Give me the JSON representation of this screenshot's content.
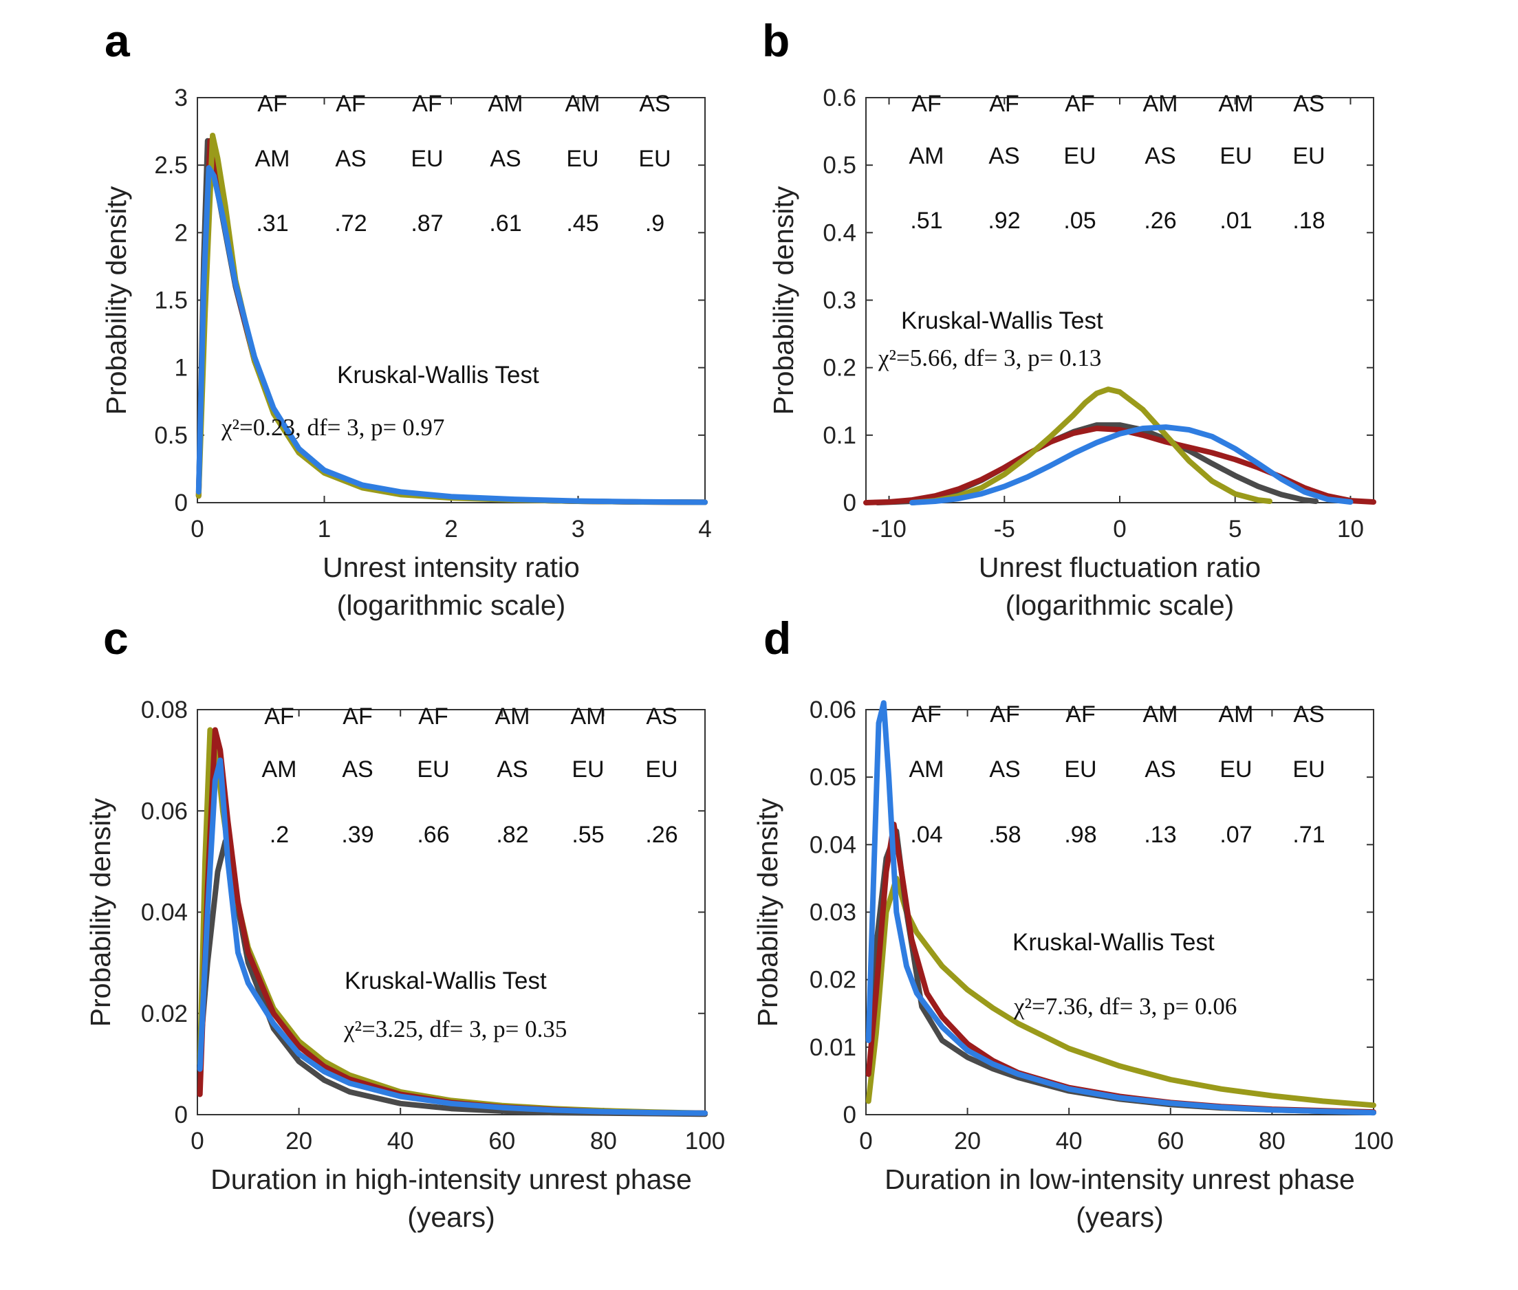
{
  "figure": {
    "colors": {
      "AF": "#4a4a4a",
      "AM": "#9c1c1c",
      "AS": "#2f7de1",
      "EU": "#9a9a1a"
    },
    "series_names": [
      "AF",
      "AM",
      "AS",
      "EU"
    ]
  },
  "chart_data": [
    {
      "panel": "a",
      "type": "line",
      "xlabel": [
        "Unrest intensity ratio",
        "(logarithmic scale)"
      ],
      "ylabel": "Probability density",
      "xlim": [
        0,
        4
      ],
      "ylim": [
        0,
        3
      ],
      "xticks": [
        0,
        1,
        2,
        3,
        4
      ],
      "xtick_labels": [
        "0",
        "1",
        "2",
        "3",
        "4"
      ],
      "yticks": [
        0,
        0.5,
        1,
        1.5,
        2,
        2.5,
        3
      ],
      "ytick_labels": [
        "0",
        "0.5",
        "1",
        "1.5",
        "2",
        "2.5",
        "3"
      ],
      "pairs": [
        {
          "top": "AF",
          "bottom": "AM",
          "p": ".31"
        },
        {
          "top": "AF",
          "bottom": "AS",
          "p": ".72"
        },
        {
          "top": "AF",
          "bottom": "EU",
          "p": ".87"
        },
        {
          "top": "AM",
          "bottom": "AS",
          "p": ".61"
        },
        {
          "top": "AM",
          "bottom": "EU",
          "p": ".45"
        },
        {
          "top": "AS",
          "bottom": "EU",
          "p": ".9"
        }
      ],
      "test_title": "Kruskal-Wallis Test",
      "test_stat": "χ²=0.23, df= 3, p= 0.97",
      "series": [
        {
          "name": "AF",
          "x": [
            0.01,
            0.05,
            0.08,
            0.12,
            0.2,
            0.3,
            0.45,
            0.6,
            0.8,
            1.0,
            1.3,
            1.6,
            2.0,
            2.5,
            3.0,
            3.5,
            4.0
          ],
          "y": [
            0.05,
            1.8,
            2.68,
            2.5,
            2.1,
            1.6,
            1.05,
            0.68,
            0.38,
            0.23,
            0.12,
            0.07,
            0.04,
            0.02,
            0.01,
            0.005,
            0.003
          ]
        },
        {
          "name": "AM",
          "x": [
            0.01,
            0.05,
            0.1,
            0.14,
            0.2,
            0.3,
            0.45,
            0.6,
            0.8,
            1.0,
            1.3,
            1.6,
            2.0,
            2.5,
            3.0,
            3.5,
            4.0
          ],
          "y": [
            0.05,
            1.5,
            2.68,
            2.5,
            2.15,
            1.62,
            1.05,
            0.68,
            0.38,
            0.23,
            0.12,
            0.07,
            0.04,
            0.02,
            0.01,
            0.005,
            0.003
          ]
        },
        {
          "name": "EU",
          "x": [
            0.01,
            0.06,
            0.12,
            0.16,
            0.22,
            0.3,
            0.45,
            0.6,
            0.8,
            1.0,
            1.3,
            1.6,
            2.0,
            2.5,
            3.0,
            3.5,
            4.0
          ],
          "y": [
            0.05,
            1.4,
            2.72,
            2.55,
            2.2,
            1.65,
            1.05,
            0.66,
            0.37,
            0.22,
            0.11,
            0.06,
            0.035,
            0.02,
            0.01,
            0.005,
            0.003
          ]
        },
        {
          "name": "AS",
          "x": [
            0.01,
            0.05,
            0.09,
            0.13,
            0.2,
            0.3,
            0.45,
            0.6,
            0.8,
            1.0,
            1.3,
            1.6,
            2.0,
            2.5,
            3.0,
            3.5,
            4.0
          ],
          "y": [
            0.08,
            1.6,
            2.48,
            2.42,
            2.12,
            1.62,
            1.08,
            0.7,
            0.4,
            0.24,
            0.13,
            0.08,
            0.045,
            0.025,
            0.012,
            0.006,
            0.003
          ]
        }
      ]
    },
    {
      "panel": "b",
      "type": "line",
      "xlabel": [
        "Unrest fluctuation ratio",
        "(logarithmic scale)"
      ],
      "ylabel": "Probability density",
      "xlim": [
        -11,
        11
      ],
      "ylim": [
        0,
        0.6
      ],
      "xticks": [
        -10,
        -5,
        0,
        5,
        10
      ],
      "xtick_labels": [
        "-10",
        "-5",
        "0",
        "5",
        "10"
      ],
      "yticks": [
        0,
        0.1,
        0.2,
        0.3,
        0.4,
        0.5,
        0.6
      ],
      "ytick_labels": [
        "0",
        "0.1",
        "0.2",
        "0.3",
        "0.4",
        "0.5",
        "0.6"
      ],
      "pairs": [
        {
          "top": "AF",
          "bottom": "AM",
          "p": ".51"
        },
        {
          "top": "AF",
          "bottom": "AS",
          "p": ".92"
        },
        {
          "top": "AF",
          "bottom": "EU",
          "p": ".05"
        },
        {
          "top": "AM",
          "bottom": "AS",
          "p": ".26"
        },
        {
          "top": "AM",
          "bottom": "EU",
          "p": ".01"
        },
        {
          "top": "AS",
          "bottom": "EU",
          "p": ".18"
        }
      ],
      "test_title": "Kruskal-Wallis Test",
      "test_stat": "χ²=5.66, df= 3, p= 0.13",
      "series": [
        {
          "name": "AF",
          "x": [
            -10.5,
            -9,
            -8,
            -7,
            -6,
            -5,
            -4,
            -3,
            -2,
            -1,
            0,
            1,
            2,
            3,
            4,
            5,
            6,
            7,
            8,
            8.5
          ],
          "y": [
            0,
            0.002,
            0.008,
            0.018,
            0.033,
            0.052,
            0.072,
            0.09,
            0.105,
            0.115,
            0.115,
            0.108,
            0.094,
            0.077,
            0.058,
            0.04,
            0.024,
            0.012,
            0.004,
            0.002
          ]
        },
        {
          "name": "AM",
          "x": [
            -11,
            -10,
            -9,
            -8,
            -7,
            -6,
            -5,
            -4,
            -3,
            -2,
            -1,
            0,
            1,
            2,
            3,
            4,
            5,
            6,
            7,
            8,
            9,
            10,
            11
          ],
          "y": [
            0,
            0.001,
            0.004,
            0.01,
            0.02,
            0.034,
            0.052,
            0.072,
            0.09,
            0.103,
            0.11,
            0.108,
            0.1,
            0.09,
            0.082,
            0.074,
            0.064,
            0.052,
            0.038,
            0.022,
            0.01,
            0.003,
            0.001
          ]
        },
        {
          "name": "EU",
          "x": [
            -9,
            -8,
            -7,
            -6,
            -5,
            -4,
            -3,
            -2,
            -1.5,
            -1,
            -0.5,
            0,
            1,
            2,
            3,
            4,
            5,
            6,
            6.5
          ],
          "y": [
            0,
            0.003,
            0.01,
            0.022,
            0.042,
            0.068,
            0.098,
            0.13,
            0.148,
            0.162,
            0.168,
            0.164,
            0.138,
            0.1,
            0.062,
            0.032,
            0.013,
            0.004,
            0.002
          ]
        },
        {
          "name": "AS",
          "x": [
            -9,
            -8,
            -7,
            -6,
            -5,
            -4,
            -3,
            -2,
            -1,
            0,
            1,
            2,
            3,
            4,
            5,
            6,
            7,
            8,
            9,
            10
          ],
          "y": [
            0,
            0.002,
            0.006,
            0.013,
            0.024,
            0.038,
            0.055,
            0.073,
            0.089,
            0.102,
            0.11,
            0.112,
            0.108,
            0.098,
            0.08,
            0.058,
            0.035,
            0.016,
            0.005,
            0.001
          ]
        }
      ]
    },
    {
      "panel": "c",
      "type": "line",
      "xlabel": [
        "Duration in high-intensity unrest phase",
        "(years)"
      ],
      "ylabel": "Probability density",
      "xlim": [
        0,
        100
      ],
      "ylim": [
        0,
        0.08
      ],
      "xticks": [
        0,
        20,
        40,
        60,
        80,
        100
      ],
      "xtick_labels": [
        "0",
        "20",
        "40",
        "60",
        "80",
        "100"
      ],
      "yticks": [
        0,
        0.02,
        0.04,
        0.06,
        0.08
      ],
      "ytick_labels": [
        "0",
        "0.02",
        "0.04",
        "0.06",
        "0.08"
      ],
      "pairs": [
        {
          "top": "AF",
          "bottom": "AM",
          "p": ".2"
        },
        {
          "top": "AF",
          "bottom": "AS",
          "p": ".39"
        },
        {
          "top": "AF",
          "bottom": "EU",
          "p": ".66"
        },
        {
          "top": "AM",
          "bottom": "AS",
          "p": ".82"
        },
        {
          "top": "AM",
          "bottom": "EU",
          "p": ".55"
        },
        {
          "top": "AS",
          "bottom": "EU",
          "p": ".26"
        }
      ],
      "test_title": "Kruskal-Wallis Test",
      "test_stat": "χ²=3.25, df= 3, p= 0.35",
      "series": [
        {
          "name": "AF",
          "x": [
            0.5,
            2,
            4,
            5.5,
            7,
            10,
            15,
            20,
            25,
            30,
            40,
            50,
            60,
            70,
            80,
            90,
            100
          ],
          "y": [
            0.012,
            0.03,
            0.048,
            0.054,
            0.046,
            0.03,
            0.017,
            0.0105,
            0.0068,
            0.0045,
            0.0022,
            0.0012,
            0.0007,
            0.0004,
            0.0003,
            0.0002,
            0.0001
          ]
        },
        {
          "name": "EU",
          "x": [
            0.5,
            1.5,
            2.5,
            3.5,
            5,
            7,
            10,
            15,
            20,
            25,
            30,
            40,
            50,
            60,
            70,
            80,
            90,
            100
          ],
          "y": [
            0.01,
            0.05,
            0.076,
            0.074,
            0.06,
            0.046,
            0.033,
            0.021,
            0.0145,
            0.0105,
            0.0078,
            0.0045,
            0.0028,
            0.0018,
            0.0012,
            0.0008,
            0.0005,
            0.0003
          ]
        },
        {
          "name": "AM",
          "x": [
            0.5,
            2,
            3.5,
            4.5,
            6,
            8,
            10,
            15,
            20,
            25,
            30,
            40,
            50,
            60,
            70,
            80,
            90,
            100
          ],
          "y": [
            0.004,
            0.045,
            0.076,
            0.072,
            0.058,
            0.042,
            0.032,
            0.02,
            0.0135,
            0.0095,
            0.007,
            0.004,
            0.0024,
            0.0015,
            0.001,
            0.0006,
            0.0004,
            0.0003
          ]
        },
        {
          "name": "AS",
          "x": [
            0.5,
            2,
            3.5,
            4.5,
            6,
            8,
            10,
            15,
            20,
            25,
            30,
            40,
            50,
            60,
            70,
            80,
            90,
            100
          ],
          "y": [
            0.009,
            0.04,
            0.066,
            0.07,
            0.05,
            0.032,
            0.026,
            0.018,
            0.012,
            0.0085,
            0.0062,
            0.0036,
            0.0022,
            0.0014,
            0.0009,
            0.0006,
            0.0004,
            0.0003
          ]
        }
      ]
    },
    {
      "panel": "d",
      "type": "line",
      "xlabel": [
        "Duration in low-intensity unrest phase",
        "(years)"
      ],
      "ylabel": "Probability density",
      "xlim": [
        0,
        100
      ],
      "ylim": [
        0,
        0.06
      ],
      "xticks": [
        0,
        20,
        40,
        60,
        80,
        100
      ],
      "xtick_labels": [
        "0",
        "20",
        "40",
        "60",
        "80",
        "100"
      ],
      "yticks": [
        0,
        0.01,
        0.02,
        0.03,
        0.04,
        0.05,
        0.06
      ],
      "ytick_labels": [
        "0",
        "0.01",
        "0.02",
        "0.03",
        "0.04",
        "0.05",
        "0.06"
      ],
      "pairs": [
        {
          "top": "AF",
          "bottom": "AM",
          "p": ".04"
        },
        {
          "top": "AF",
          "bottom": "AS",
          "p": ".58"
        },
        {
          "top": "AF",
          "bottom": "EU",
          "p": ".98"
        },
        {
          "top": "AM",
          "bottom": "AS",
          "p": ".13"
        },
        {
          "top": "AM",
          "bottom": "EU",
          "p": ".07"
        },
        {
          "top": "AS",
          "bottom": "EU",
          "p": ".71"
        }
      ],
      "test_title": "Kruskal-Wallis Test",
      "test_stat": "χ²=7.36, df= 3, p= 0.06",
      "series": [
        {
          "name": "EU",
          "x": [
            0.5,
            2,
            4,
            6,
            8,
            10,
            15,
            20,
            25,
            30,
            40,
            50,
            60,
            70,
            80,
            90,
            100
          ],
          "y": [
            0.002,
            0.012,
            0.03,
            0.035,
            0.03,
            0.027,
            0.022,
            0.0185,
            0.0158,
            0.0135,
            0.0098,
            0.0072,
            0.0052,
            0.0038,
            0.0028,
            0.002,
            0.0014
          ]
        },
        {
          "name": "AF",
          "x": [
            0.5,
            2,
            4,
            6,
            8,
            11,
            15,
            20,
            25,
            30,
            40,
            50,
            60,
            70,
            80,
            90,
            100
          ],
          "y": [
            0.012,
            0.025,
            0.038,
            0.042,
            0.03,
            0.016,
            0.011,
            0.0085,
            0.0068,
            0.0055,
            0.0035,
            0.0023,
            0.0015,
            0.001,
            0.0007,
            0.0005,
            0.0003
          ]
        },
        {
          "name": "AM",
          "x": [
            0.5,
            2,
            4,
            5.5,
            7,
            9,
            12,
            15,
            20,
            25,
            30,
            40,
            50,
            60,
            70,
            80,
            90,
            100
          ],
          "y": [
            0.006,
            0.018,
            0.036,
            0.043,
            0.036,
            0.026,
            0.018,
            0.0145,
            0.0105,
            0.008,
            0.0062,
            0.004,
            0.0027,
            0.0018,
            0.0012,
            0.0008,
            0.0006,
            0.0004
          ]
        },
        {
          "name": "AS",
          "x": [
            0.5,
            1.5,
            2.5,
            3.5,
            4.5,
            6,
            8,
            10,
            15,
            20,
            25,
            30,
            40,
            50,
            60,
            70,
            80,
            90,
            100
          ],
          "y": [
            0.011,
            0.035,
            0.058,
            0.061,
            0.05,
            0.03,
            0.022,
            0.018,
            0.013,
            0.0095,
            0.0075,
            0.006,
            0.0038,
            0.0025,
            0.0017,
            0.0011,
            0.0007,
            0.0005,
            0.0003
          ]
        }
      ]
    }
  ]
}
